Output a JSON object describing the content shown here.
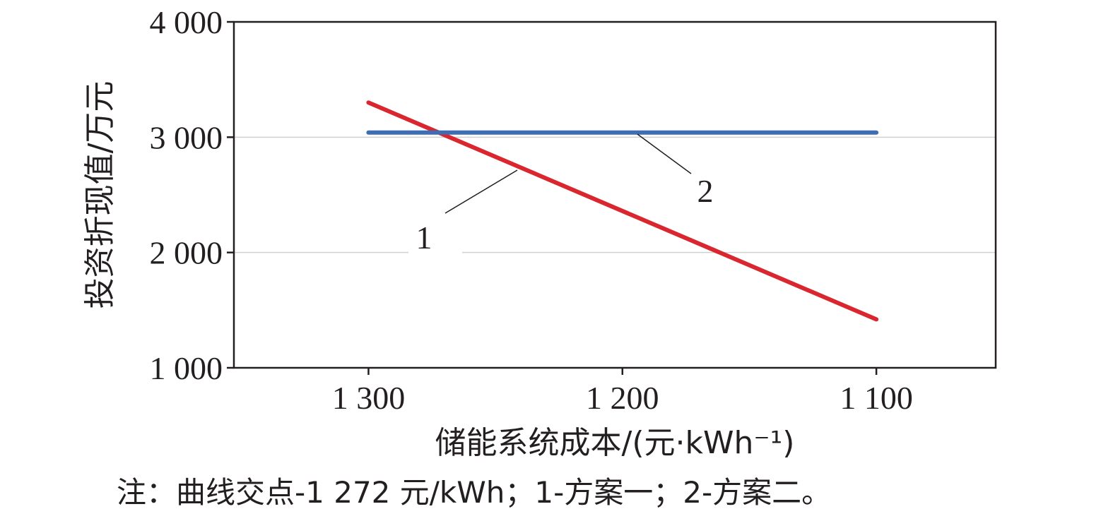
{
  "chart_data": {
    "type": "line",
    "xlabel": "储能系统成本/(元·kWh⁻¹)",
    "ylabel": "投资折现值/万元",
    "x_ticks": [
      1300,
      1200,
      1100
    ],
    "x_tick_labels": [
      "1 300",
      "1 200",
      "1 100"
    ],
    "x_reversed": true,
    "xlim": [
      1353,
      1053
    ],
    "y_ticks": [
      1000,
      2000,
      3000,
      4000
    ],
    "y_tick_labels": [
      "1 000",
      "2 000",
      "3 000",
      "4 000"
    ],
    "ylim": [
      1000,
      4000
    ],
    "grid": "horizontal",
    "series": [
      {
        "name": "1",
        "color": "#d9262f",
        "x": [
          1300,
          1100
        ],
        "y": [
          3300,
          1420
        ]
      },
      {
        "name": "2",
        "color": "#3e6db5",
        "x": [
          1300,
          1100
        ],
        "y": [
          3040,
          3040
        ]
      }
    ]
  },
  "note": "注：曲线交点-1 272 元/kWh；1-方案一；2-方案二。"
}
